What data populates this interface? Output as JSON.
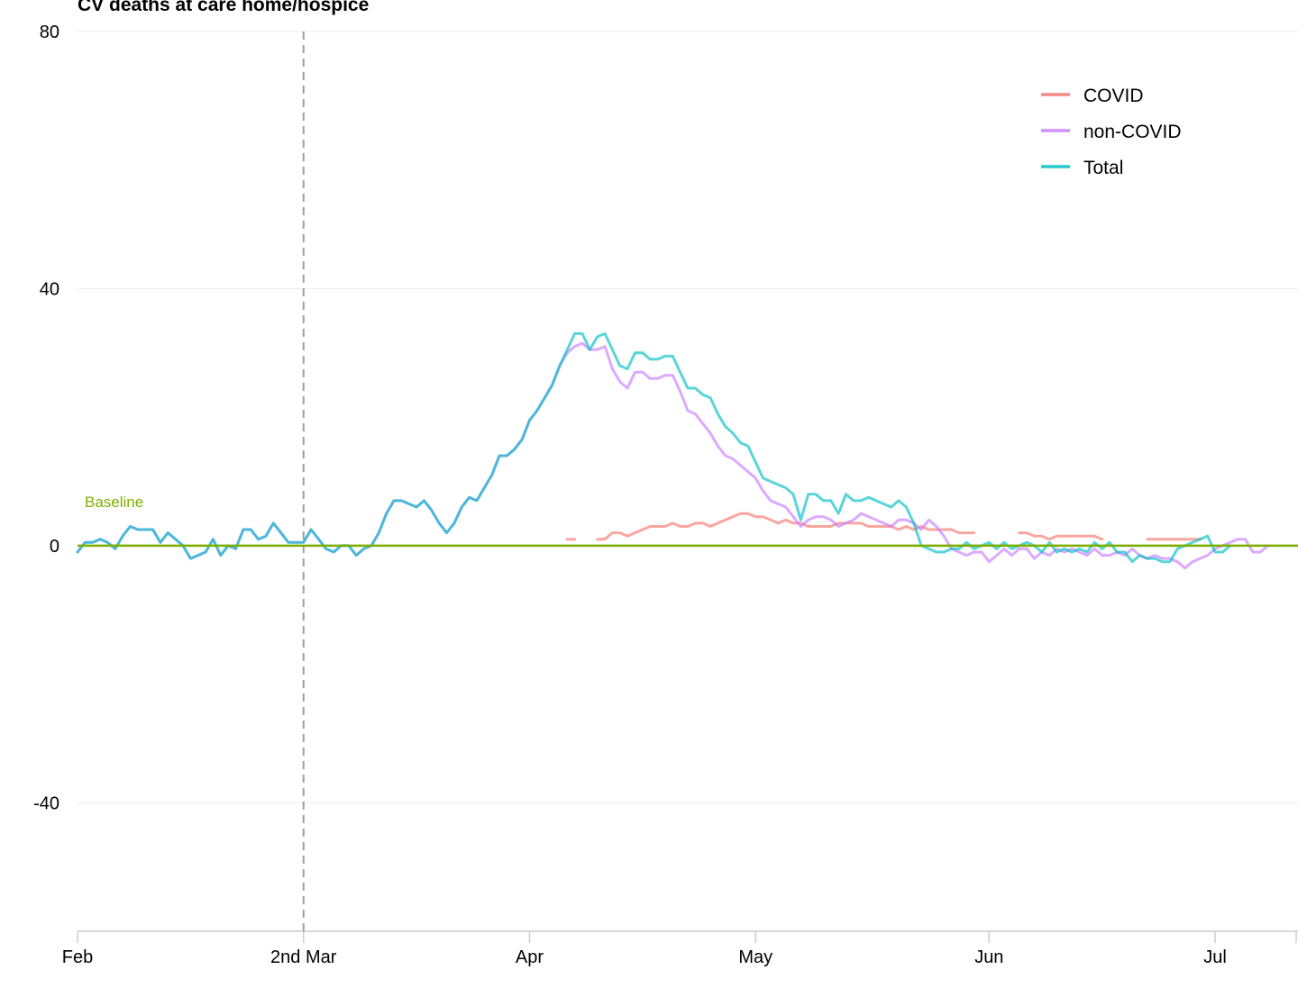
{
  "chart_data": {
    "type": "line",
    "title": "CV deaths at care home/hospice",
    "xlabel": "",
    "ylabel": "",
    "ylim": [
      -60,
      80
    ],
    "yticks": [
      80,
      40,
      0,
      -40
    ],
    "xlim": [
      "2020-02-01",
      "2020-07-12"
    ],
    "xticks": [
      {
        "date": "2020-02-01",
        "label": "Feb"
      },
      {
        "date": "2020-03-02",
        "label": "2nd Mar"
      },
      {
        "date": "2020-04-01",
        "label": "Apr"
      },
      {
        "date": "2020-05-01",
        "label": "May"
      },
      {
        "date": "2020-06-01",
        "label": "Jun"
      },
      {
        "date": "2020-07-01",
        "label": "Jul"
      }
    ],
    "reference_line": {
      "date": "2020-03-02",
      "style": "dashed"
    },
    "baseline": {
      "value": 0,
      "label": "Baseline",
      "color": "#7cae00"
    },
    "legend_position": "top-right",
    "series": [
      {
        "name": "COVID",
        "color": "#f8766d",
        "start": "2020-04-06",
        "values": [
          1,
          1,
          null,
          null,
          1,
          1,
          2,
          2,
          1.5,
          2,
          2.5,
          3,
          3,
          3,
          3.5,
          3,
          3,
          3.5,
          3.5,
          3,
          3.5,
          4,
          4.5,
          5,
          5,
          4.5,
          4.5,
          4,
          3.5,
          4,
          3.5,
          3.5,
          3,
          3,
          3,
          3,
          3.5,
          3.5,
          3.5,
          3.5,
          3,
          3,
          3,
          3,
          2.5,
          3,
          2.5,
          3,
          2.5,
          2.5,
          2.5,
          2.5,
          2,
          2,
          2,
          null,
          null,
          null,
          null,
          null,
          2,
          2,
          1.5,
          1.5,
          1,
          1.5,
          1.5,
          1.5,
          1.5,
          1.5,
          1.5,
          1,
          null,
          null,
          null,
          null,
          null,
          1,
          1,
          1,
          1,
          1,
          1,
          1,
          1
        ]
      },
      {
        "name": "non-COVID",
        "color": "#c77cff",
        "start": "2020-02-01",
        "values": [
          -1,
          0.5,
          0.5,
          1,
          0.5,
          -0.5,
          1.5,
          3,
          2.5,
          2.5,
          2.5,
          0.5,
          2,
          1,
          0,
          -2,
          -1.5,
          -1,
          1,
          -1.5,
          0,
          -0.5,
          2.5,
          2.5,
          1,
          1.5,
          3.5,
          2,
          0.5,
          0.5,
          0.5,
          2.5,
          1,
          -0.5,
          -1,
          0,
          0,
          -1.5,
          -0.5,
          0,
          2,
          5,
          7,
          7,
          6.5,
          6,
          7,
          5.5,
          3.5,
          2,
          3.5,
          6,
          7.5,
          7,
          9,
          11,
          14,
          14,
          15,
          16.5,
          19.5,
          21,
          23,
          25,
          28,
          30,
          31,
          31.5,
          30.5,
          30.5,
          31,
          27.5,
          25.5,
          24.5,
          27,
          27,
          26,
          26,
          26.5,
          26.5,
          24,
          21,
          20.5,
          19,
          17.5,
          15.5,
          14,
          13.5,
          12.5,
          11.5,
          10.5,
          8.5,
          7,
          6.5,
          6,
          4.5,
          3,
          4,
          4.5,
          4.5,
          4,
          3,
          3.5,
          4,
          5,
          4.5,
          4,
          3.5,
          3,
          4,
          4,
          3.5,
          2.5,
          4,
          3,
          1.5,
          -0.5,
          -1,
          -1.5,
          -1,
          -1,
          -2.5,
          -1.5,
          -0.5,
          -1.5,
          -0.5,
          -0.5,
          -2,
          -1,
          -1.5,
          -0.5,
          -1,
          -0.5,
          -1,
          -1.5,
          -0.5,
          -1.5,
          -1.5,
          -1,
          -1.5,
          -0.5,
          -1.5,
          -2,
          -1.5,
          -2,
          -2,
          -2.5,
          -3.5,
          -2.5,
          -2,
          -1.5,
          -0.5,
          0,
          0.5,
          1,
          1,
          -1,
          -1,
          0
        ]
      },
      {
        "name": "Total",
        "color": "#00bfc4",
        "start": "2020-02-01",
        "values": [
          -1,
          0.5,
          0.5,
          1,
          0.5,
          -0.5,
          1.5,
          3,
          2.5,
          2.5,
          2.5,
          0.5,
          2,
          1,
          0,
          -2,
          -1.5,
          -1,
          1,
          -1.5,
          0,
          -0.5,
          2.5,
          2.5,
          1,
          1.5,
          3.5,
          2,
          0.5,
          0.5,
          0.5,
          2.5,
          1,
          -0.5,
          -1,
          0,
          0,
          -1.5,
          -0.5,
          0,
          2,
          5,
          7,
          7,
          6.5,
          6,
          7,
          5.5,
          3.5,
          2,
          3.5,
          6,
          7.5,
          7,
          9,
          11,
          14,
          14,
          15,
          16.5,
          19.5,
          21,
          23,
          25,
          28,
          30.5,
          33,
          33,
          30.5,
          32.5,
          33,
          30.5,
          28,
          27.5,
          30,
          30,
          29,
          29,
          29.5,
          29.5,
          27,
          24.5,
          24.5,
          23.5,
          23,
          20.5,
          18.5,
          17.5,
          16,
          15.5,
          13,
          10.5,
          10,
          9.5,
          9,
          8,
          4,
          8,
          8,
          7,
          7,
          5,
          8,
          7,
          7,
          7.5,
          7,
          6.5,
          6,
          7,
          6,
          3.5,
          0,
          -0.5,
          -1,
          -1,
          -0.5,
          -0.5,
          0.5,
          -0.5,
          0,
          0.5,
          -0.5,
          0.5,
          -0.5,
          0,
          0.5,
          0,
          -1,
          0.5,
          -1,
          -0.5,
          -1,
          -0.5,
          -1,
          0.5,
          -0.5,
          0.5,
          -1,
          -1,
          -2.5,
          -1.5,
          -2,
          -2,
          -2.5,
          -2.5,
          -0.5,
          0,
          0.5,
          1,
          1.5,
          -1,
          -1,
          0
        ]
      }
    ]
  }
}
